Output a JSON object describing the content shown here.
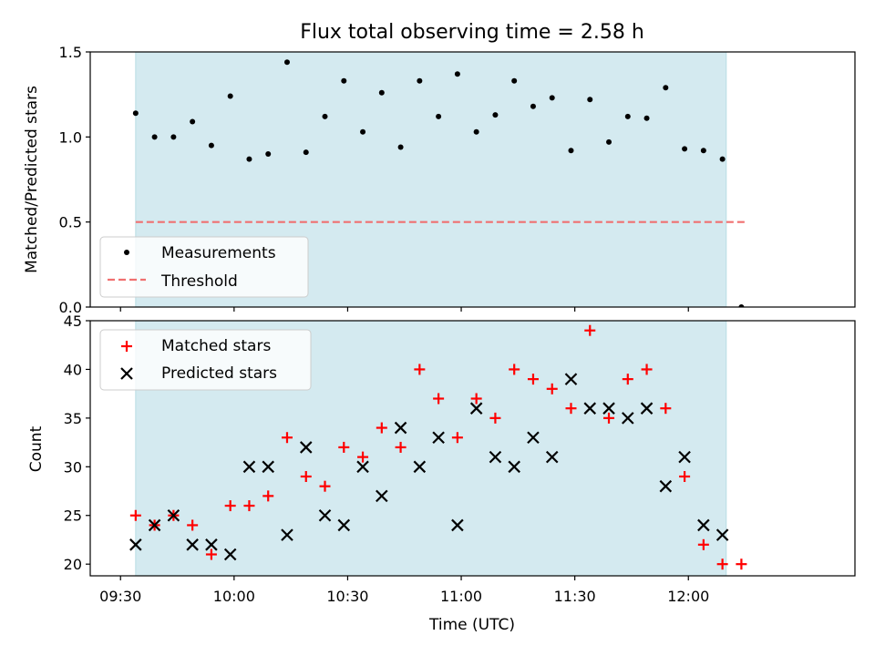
{
  "chart_data": [
    {
      "type": "scatter",
      "title": "Flux total observing time = 2.58 h",
      "ylabel": "Matched/Predicted stars",
      "xlabel": "",
      "xlim": [
        "09:22",
        "12:44"
      ],
      "ylim": [
        0,
        1.5
      ],
      "yticks": [
        "0.0",
        "0.5",
        "1.0",
        "1.5"
      ],
      "shaded_span": [
        "09:34",
        "12:10"
      ],
      "shade_color": "#d4eaf0",
      "threshold": {
        "label": "Threshold",
        "value": 0.5,
        "from": "09:34",
        "to": "12:15",
        "color": "#f07070"
      },
      "legend_position": "lower left",
      "series": [
        {
          "name": "Measurements",
          "color": "#000000",
          "points": [
            [
              "09:34",
              1.14
            ],
            [
              "09:39",
              1.0
            ],
            [
              "09:44",
              1.0
            ],
            [
              "09:49",
              1.09
            ],
            [
              "09:54",
              0.95
            ],
            [
              "09:59",
              1.24
            ],
            [
              "10:04",
              0.87
            ],
            [
              "10:09",
              0.9
            ],
            [
              "10:14",
              1.44
            ],
            [
              "10:19",
              0.91
            ],
            [
              "10:24",
              1.12
            ],
            [
              "10:29",
              1.33
            ],
            [
              "10:34",
              1.03
            ],
            [
              "10:39",
              1.26
            ],
            [
              "10:44",
              0.94
            ],
            [
              "10:49",
              1.33
            ],
            [
              "10:54",
              1.12
            ],
            [
              "10:59",
              1.37
            ],
            [
              "11:04",
              1.03
            ],
            [
              "11:09",
              1.13
            ],
            [
              "11:14",
              1.33
            ],
            [
              "11:19",
              1.18
            ],
            [
              "11:24",
              1.23
            ],
            [
              "11:29",
              0.92
            ],
            [
              "11:34",
              1.22
            ],
            [
              "11:39",
              0.97
            ],
            [
              "11:44",
              1.12
            ],
            [
              "11:49",
              1.11
            ],
            [
              "11:54",
              1.29
            ],
            [
              "11:59",
              0.93
            ],
            [
              "12:04",
              0.92
            ],
            [
              "12:09",
              0.87
            ],
            [
              "12:14",
              0.0
            ]
          ]
        }
      ]
    },
    {
      "type": "scatter",
      "title": "",
      "ylabel": "Count",
      "xlabel": "Time (UTC)",
      "xlim": [
        "09:22",
        "12:44"
      ],
      "ylim": [
        18.8,
        45
      ],
      "yticks": [
        "20",
        "25",
        "30",
        "35",
        "40",
        "45"
      ],
      "xticks": [
        "09:30",
        "10:00",
        "10:30",
        "11:00",
        "11:30",
        "12:00"
      ],
      "shaded_span": [
        "09:34",
        "12:10"
      ],
      "legend_position": "upper left",
      "series": [
        {
          "name": "Matched stars",
          "marker": "plus",
          "color": "#ff0000",
          "points": [
            [
              "09:34",
              25
            ],
            [
              "09:39",
              24
            ],
            [
              "09:44",
              25
            ],
            [
              "09:49",
              24
            ],
            [
              "09:54",
              21
            ],
            [
              "09:59",
              26
            ],
            [
              "10:04",
              26
            ],
            [
              "10:09",
              27
            ],
            [
              "10:14",
              33
            ],
            [
              "10:19",
              29
            ],
            [
              "10:24",
              28
            ],
            [
              "10:29",
              32
            ],
            [
              "10:34",
              31
            ],
            [
              "10:39",
              34
            ],
            [
              "10:44",
              32
            ],
            [
              "10:49",
              40
            ],
            [
              "10:54",
              37
            ],
            [
              "10:59",
              33
            ],
            [
              "11:04",
              37
            ],
            [
              "11:09",
              35
            ],
            [
              "11:14",
              40
            ],
            [
              "11:19",
              39
            ],
            [
              "11:24",
              38
            ],
            [
              "11:29",
              36
            ],
            [
              "11:34",
              44
            ],
            [
              "11:39",
              35
            ],
            [
              "11:44",
              39
            ],
            [
              "11:49",
              40
            ],
            [
              "11:54",
              36
            ],
            [
              "11:59",
              29
            ],
            [
              "12:04",
              22
            ],
            [
              "12:09",
              20
            ],
            [
              "12:14",
              20
            ]
          ]
        },
        {
          "name": "Predicted stars",
          "marker": "x",
          "color": "#000000",
          "points": [
            [
              "09:34",
              22
            ],
            [
              "09:39",
              24
            ],
            [
              "09:44",
              25
            ],
            [
              "09:49",
              22
            ],
            [
              "09:54",
              22
            ],
            [
              "09:59",
              21
            ],
            [
              "10:04",
              30
            ],
            [
              "10:09",
              30
            ],
            [
              "10:14",
              23
            ],
            [
              "10:19",
              32
            ],
            [
              "10:24",
              25
            ],
            [
              "10:29",
              24
            ],
            [
              "10:34",
              30
            ],
            [
              "10:39",
              27
            ],
            [
              "10:44",
              34
            ],
            [
              "10:49",
              30
            ],
            [
              "10:54",
              33
            ],
            [
              "10:59",
              24
            ],
            [
              "11:04",
              36
            ],
            [
              "11:09",
              31
            ],
            [
              "11:14",
              30
            ],
            [
              "11:19",
              33
            ],
            [
              "11:24",
              31
            ],
            [
              "11:29",
              39
            ],
            [
              "11:34",
              36
            ],
            [
              "11:39",
              36
            ],
            [
              "11:44",
              35
            ],
            [
              "11:49",
              36
            ],
            [
              "11:54",
              28
            ],
            [
              "11:59",
              31
            ],
            [
              "12:04",
              24
            ],
            [
              "12:09",
              23
            ]
          ]
        }
      ]
    }
  ]
}
